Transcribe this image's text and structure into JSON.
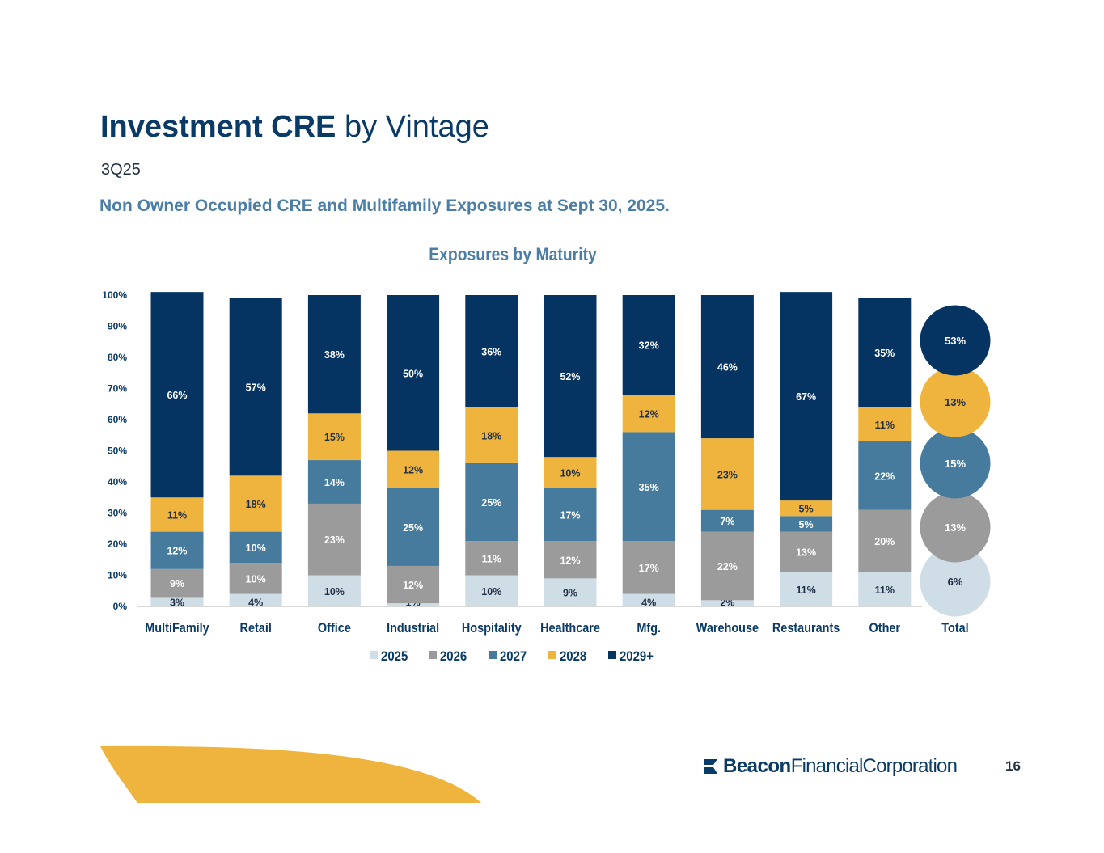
{
  "header": {
    "title_bold": "Investment CRE",
    "title_rest": "by Vintage",
    "subtitle": "3Q25",
    "description": "Non Owner Occupied CRE and Multifamily Exposures at Sept 30, 2025."
  },
  "footer": {
    "logo_bold": "Beacon",
    "logo_rest": "FinancialCorporation",
    "page_number": "16"
  },
  "colors": {
    "y2025": "#cfdde7",
    "y2026": "#9b9b9b",
    "y2027": "#467b9e",
    "y2028": "#efb43d",
    "y2029": "#063462",
    "title": "#0a3a66",
    "accent": "#4b7ea6",
    "swoosh": "#efb43d"
  },
  "chart_data": {
    "type": "bar",
    "stacked": true,
    "title": "Exposures by Maturity",
    "categories": [
      "MultiFamily",
      "Retail",
      "Office",
      "Industrial",
      "Hospitality",
      "Healthcare",
      "Mfg.",
      "Warehouse",
      "Restaurants",
      "Other"
    ],
    "series": [
      {
        "name": "2025",
        "values": [
          3,
          4,
          10,
          1,
          10,
          9,
          4,
          2,
          11,
          11
        ],
        "labels": [
          "3%",
          "4%",
          "10%",
          "1%",
          "10%",
          "9%",
          "4%",
          "2%",
          "11%",
          "11%"
        ]
      },
      {
        "name": "2026",
        "values": [
          9,
          10,
          23,
          12,
          11,
          12,
          17,
          22,
          13,
          20
        ],
        "labels": [
          "9%",
          "10%",
          "23%",
          "12%",
          "11%",
          "12%",
          "17%",
          "22%",
          "13%",
          "20%"
        ]
      },
      {
        "name": "2027",
        "values": [
          12,
          10,
          14,
          25,
          25,
          17,
          35,
          7,
          5,
          22
        ],
        "labels": [
          "12%",
          "10%",
          "14%",
          "25%",
          "25%",
          "17%",
          "35%",
          "7%",
          "5%",
          "22%"
        ]
      },
      {
        "name": "2028",
        "values": [
          11,
          18,
          15,
          12,
          18,
          10,
          12,
          23,
          5,
          11
        ],
        "labels": [
          "11%",
          "18%",
          "15%",
          "12%",
          "18%",
          "10%",
          "12%",
          "23%",
          "5%",
          "11%"
        ]
      },
      {
        "name": "2029+",
        "values": [
          66,
          57,
          38,
          50,
          36,
          52,
          32,
          46,
          67,
          35
        ],
        "labels": [
          "66%",
          "57%",
          "38%",
          "50%",
          "36%",
          "52%",
          "32%",
          "46%",
          "67%",
          "35%"
        ]
      }
    ],
    "total": {
      "label": "Total",
      "values": [
        6,
        13,
        15,
        13,
        53
      ],
      "labels": [
        "6%",
        "13%",
        "15%",
        "13%",
        "53%"
      ]
    },
    "y_ticks": [
      "0%",
      "10%",
      "20%",
      "30%",
      "40%",
      "50%",
      "60%",
      "70%",
      "80%",
      "90%",
      "100%"
    ],
    "ylim": [
      0,
      100
    ],
    "legend": [
      "2025",
      "2026",
      "2027",
      "2028",
      "2029+"
    ],
    "legend_position": "bottom",
    "grid": false
  }
}
